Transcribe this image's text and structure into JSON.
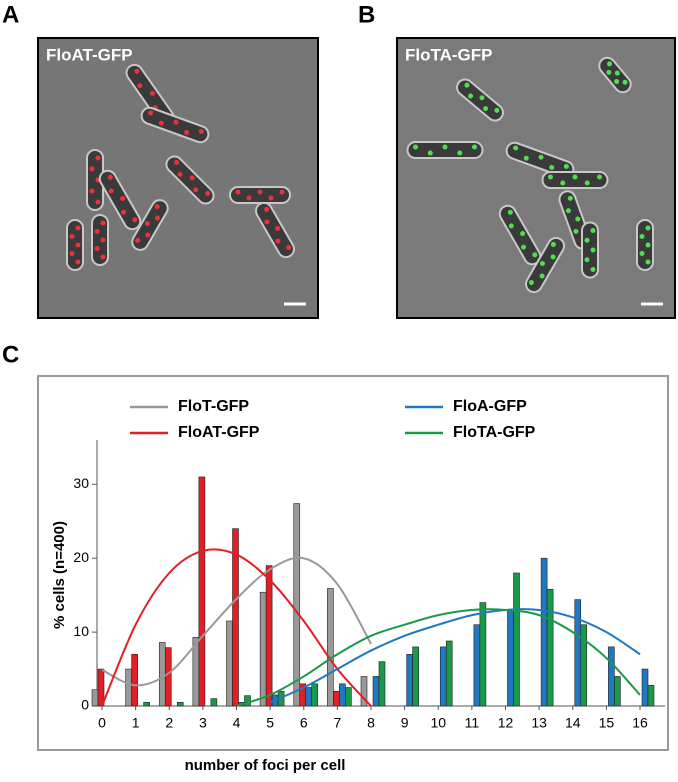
{
  "panels": [
    {
      "letter": "A",
      "label": "FloAT-GFP"
    },
    {
      "letter": "B",
      "label": "FloTA-GFP"
    }
  ],
  "chart_data": {
    "type": "bar",
    "letter": "C",
    "x_label": "number of foci per cell",
    "y_label": "% cells  (n=400)",
    "categories": [
      "0",
      "1",
      "2",
      "3",
      "4",
      "5",
      "6",
      "7",
      "8",
      "9",
      "10",
      "11",
      "12",
      "13",
      "14",
      "15",
      "16"
    ],
    "ylim": [
      0,
      36
    ],
    "yticks": [
      0,
      10,
      20,
      30
    ],
    "legend": "top",
    "series": [
      {
        "name": "FloT-GFP",
        "color": "#999999",
        "values": [
          2.2,
          5,
          8.6,
          9.3,
          11.5,
          15.4,
          27.4,
          15.9,
          4,
          0,
          0,
          0,
          0,
          0,
          0,
          0,
          0
        ],
        "trend": [
          4.9,
          2.8,
          4.5,
          9.5,
          14.5,
          18.5,
          20,
          16.5,
          8.4,
          null,
          null,
          null,
          null,
          null,
          null,
          null,
          null
        ]
      },
      {
        "name": "FloAT-GFP",
        "color": "#e31e24",
        "values": [
          5,
          7,
          7.9,
          31,
          24,
          19,
          3,
          2,
          0,
          0,
          0,
          0,
          0,
          0,
          0,
          0,
          0
        ],
        "trend": [
          0,
          11,
          18,
          21,
          20.5,
          17,
          11.5,
          5,
          0,
          null,
          null,
          null,
          null,
          null,
          null,
          null,
          null
        ]
      },
      {
        "name": "FloA-GFP",
        "color": "#1f78c1",
        "values": [
          0,
          0,
          0,
          0,
          0.5,
          1.5,
          2.5,
          3,
          4,
          7,
          8,
          11,
          13,
          20,
          14.4,
          8,
          5
        ],
        "trend": [
          null,
          null,
          null,
          null,
          null,
          0.5,
          2.5,
          5,
          7.5,
          9.5,
          11,
          12.3,
          13,
          13,
          12,
          10,
          7
        ]
      },
      {
        "name": "FloTA-GFP",
        "color": "#1a9a48",
        "values": [
          0,
          0.5,
          0.5,
          1,
          1.4,
          2,
          3,
          2.5,
          6,
          8,
          8.8,
          14,
          18,
          15.8,
          11,
          4,
          2.8
        ],
        "trend": [
          null,
          null,
          null,
          null,
          0,
          1.5,
          4,
          7,
          9.5,
          11,
          12.3,
          13,
          13,
          12.3,
          10,
          6.5,
          1.5
        ]
      }
    ]
  }
}
